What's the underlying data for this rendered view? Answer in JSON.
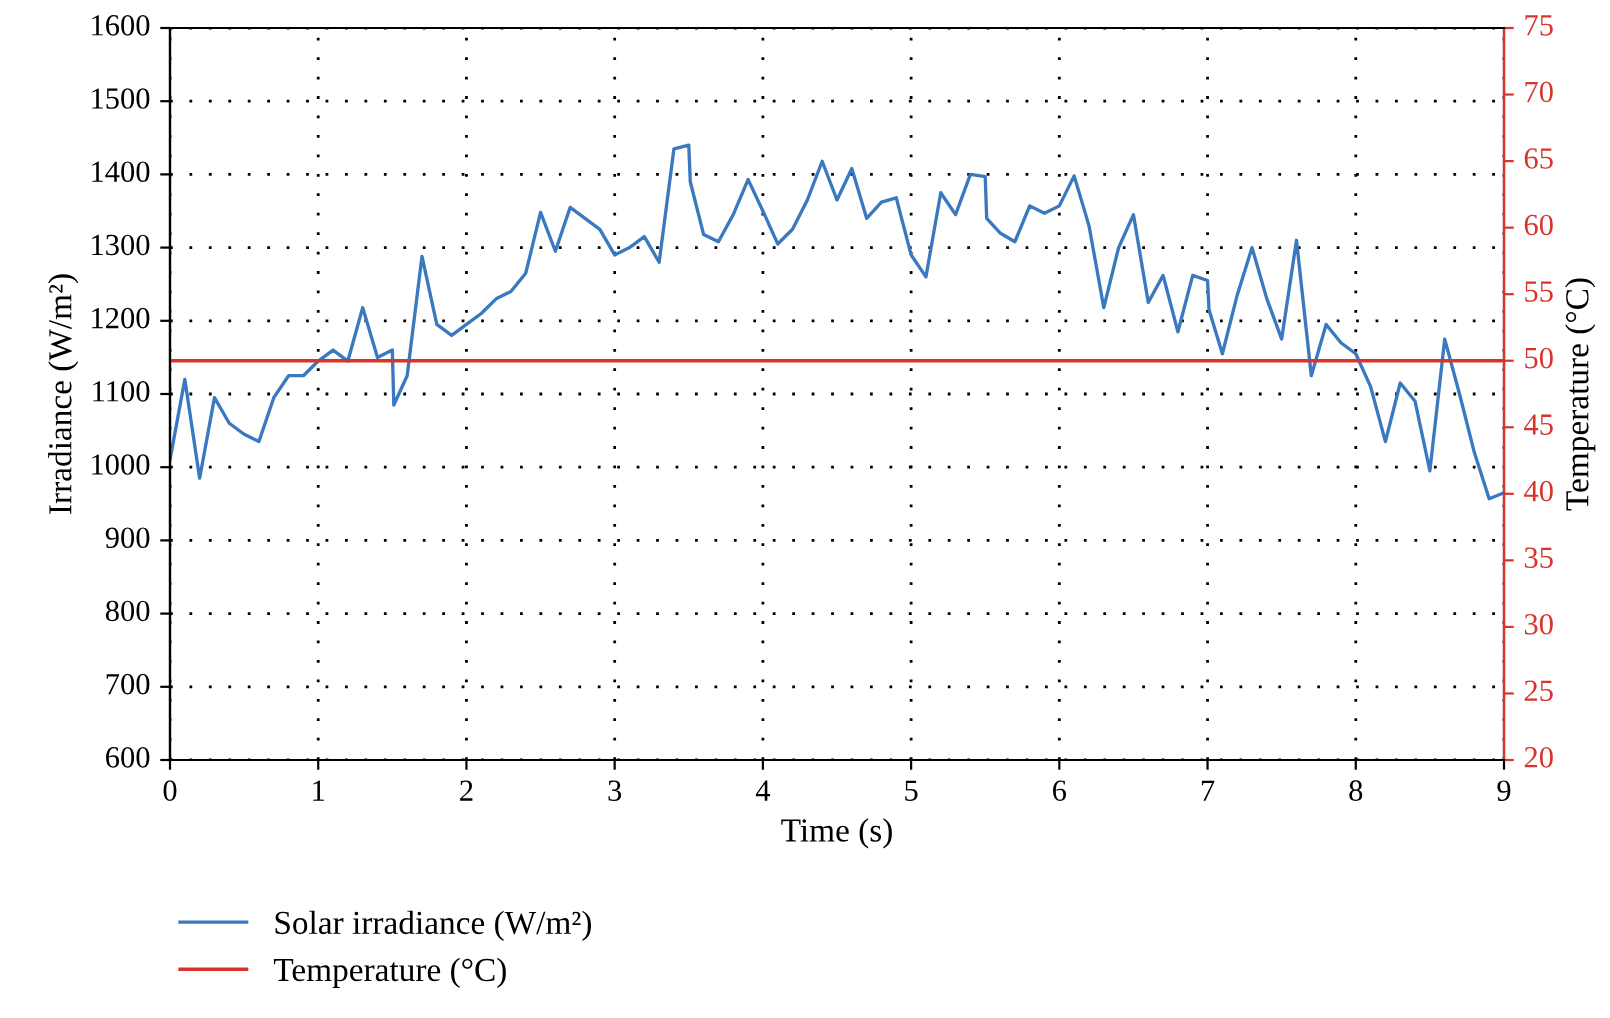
{
  "chart_data": {
    "type": "line",
    "xlabel": "Time (s)",
    "ylabel": "Irradiance (W/m²)",
    "y2label": "Temperature (°C)",
    "xlim": [
      0,
      9
    ],
    "xticks": [
      0,
      1,
      2,
      3,
      4,
      5,
      6,
      7,
      8,
      9
    ],
    "ylim": [
      600,
      1600
    ],
    "yticks": [
      600,
      700,
      800,
      900,
      1000,
      1100,
      1200,
      1300,
      1400,
      1500,
      1600
    ],
    "y2lim": [
      20,
      75
    ],
    "y2ticks": [
      20,
      25,
      30,
      35,
      40,
      45,
      50,
      55,
      60,
      65,
      70,
      75
    ],
    "grid": true,
    "legend": "bottom left",
    "line_style": "solid",
    "series": [
      {
        "name": "Solar irradiance (W/m²)",
        "color": "#3a78c0",
        "x": [
          0,
          0.1,
          0.2,
          0.3,
          0.4,
          0.5,
          0.6,
          0.7,
          0.8,
          0.9,
          1.0,
          1.1,
          1.2,
          1.3,
          1.4,
          1.5,
          1.51,
          1.6,
          1.7,
          1.8,
          1.9,
          2.0,
          2.1,
          2.2,
          2.3,
          2.4,
          2.5,
          2.6,
          2.7,
          2.8,
          2.9,
          3.0,
          3.1,
          3.2,
          3.3,
          3.4,
          3.5,
          3.51,
          3.6,
          3.7,
          3.8,
          3.9,
          4.0,
          4.1,
          4.2,
          4.3,
          4.4,
          4.5,
          4.6,
          4.7,
          4.8,
          4.9,
          5.0,
          5.1,
          5.2,
          5.3,
          5.4,
          5.5,
          5.51,
          5.6,
          5.7,
          5.8,
          5.9,
          6.0,
          6.1,
          6.2,
          6.3,
          6.4,
          6.5,
          6.6,
          6.7,
          6.8,
          6.9,
          7.0,
          7.01,
          7.1,
          7.2,
          7.3,
          7.4,
          7.5,
          7.6,
          7.7,
          7.8,
          7.9,
          8.0,
          8.1,
          8.2,
          8.3,
          8.4,
          8.5,
          8.6,
          8.7,
          8.8,
          8.9,
          9.0
        ],
        "values": [
          1010,
          1120,
          985,
          1095,
          1060,
          1045,
          1035,
          1095,
          1125,
          1125,
          1145,
          1160,
          1145,
          1218,
          1150,
          1160,
          1085,
          1125,
          1288,
          1195,
          1180,
          1195,
          1210,
          1230,
          1240,
          1265,
          1348,
          1295,
          1355,
          1340,
          1325,
          1290,
          1300,
          1315,
          1280,
          1435,
          1440,
          1390,
          1318,
          1308,
          1345,
          1393,
          1350,
          1305,
          1325,
          1365,
          1418,
          1365,
          1408,
          1340,
          1362,
          1368,
          1290,
          1260,
          1375,
          1345,
          1400,
          1397,
          1340,
          1320,
          1308,
          1357,
          1347,
          1357,
          1398,
          1330,
          1218,
          1300,
          1345,
          1225,
          1262,
          1185,
          1262,
          1255,
          1215,
          1155,
          1235,
          1300,
          1230,
          1175,
          1310,
          1125,
          1195,
          1170,
          1155,
          1110,
          1035,
          1115,
          1090,
          995,
          1175,
          1100,
          1020,
          957,
          965
        ]
      },
      {
        "name": "Temperature (°C)",
        "color": "#d9342b",
        "axis": "y2",
        "x": [
          0,
          9
        ],
        "values": [
          50,
          50
        ]
      }
    ]
  }
}
